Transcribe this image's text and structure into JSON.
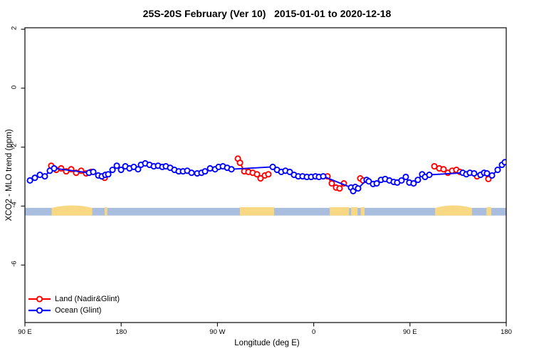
{
  "title": "25S-20S February (Ver 10)   2015-01-01 to 2020-12-18",
  "chart_data": {
    "type": "line",
    "title": "25S-20S February (Ver 10)   2015-01-01 to 2020-12-18",
    "xlabel": "Longitude (deg E)",
    "ylabel": "XCO2 - MLO trend (ppm)",
    "axis_note": "x axis spans 450 deg of longitude starting at 90E and wrapping east through 180, 90W, 0, 90E to 180; stored x values are 90..540",
    "xlim": [
      90,
      540
    ],
    "ylim": [
      -7.95,
      2.05
    ],
    "grid": false,
    "legend_position": "bottom-left",
    "x_ticks": [
      {
        "value": 90,
        "label": "90 E"
      },
      {
        "value": 180,
        "label": "180"
      },
      {
        "value": 270,
        "label": "90 W"
      },
      {
        "value": 360,
        "label": "0"
      },
      {
        "value": 450,
        "label": "90 E"
      },
      {
        "value": 540,
        "label": "180"
      }
    ],
    "y_ticks": [
      {
        "value": 2,
        "label": "2"
      },
      {
        "value": 0,
        "label": "0"
      },
      {
        "value": -2,
        "label": "-2"
      },
      {
        "value": -4,
        "label": "-4"
      },
      {
        "value": -6,
        "label": "-6"
      }
    ],
    "legend": [
      {
        "name": "Land (Nadir&Glint)",
        "color": "#ff0000"
      },
      {
        "name": "Ocean (Glint)",
        "color": "#0000ff"
      }
    ],
    "colors": {
      "land_series": "#ff0000",
      "ocean_series": "#0000ff",
      "map_ocean": "#a9bede",
      "map_land": "#f9d884",
      "axis": "#1a1a1a"
    },
    "map_band": {
      "description": "coastline strip for latitude band 25S-20S drawn across plot near y=-4.2",
      "value_top": -4.06,
      "value_bottom": -4.32,
      "land_segments": [
        {
          "from": 115.0,
          "to": 153.0,
          "hump": true,
          "name": "Australia"
        },
        {
          "from": 164.5,
          "to": 167.0,
          "hump": false,
          "name": "New Caledonia"
        },
        {
          "from": 291.0,
          "to": 323.0,
          "hump": false,
          "name": "South America"
        },
        {
          "from": 375.0,
          "to": 393.0,
          "hump": false,
          "name": "Africa"
        },
        {
          "from": 395.0,
          "to": 401.0,
          "hump": false,
          "name": "Africa east"
        },
        {
          "from": 404.0,
          "to": 407.5,
          "hump": false,
          "name": "Madagascar"
        },
        {
          "from": 473.5,
          "to": 508.0,
          "hump": true,
          "name": "Australia"
        },
        {
          "from": 521.5,
          "to": 526.0,
          "hump": false,
          "name": "New Caledonia"
        }
      ]
    },
    "series": [
      {
        "name": "Land (Nadir&Glint)",
        "color": "#ff0000",
        "marker": "open-circle",
        "segments": [
          [
            [
              114.6,
              -2.63
            ],
            [
              119.3,
              -2.77
            ],
            [
              123.9,
              -2.72
            ],
            [
              128.6,
              -2.82
            ],
            [
              133.3,
              -2.75
            ],
            [
              137.9,
              -2.87
            ],
            [
              142.6,
              -2.8
            ],
            [
              147.2,
              -2.89
            ],
            [
              151.9,
              -2.84
            ]
          ],
          [
            [
              164.6,
              -3.04
            ]
          ],
          [
            [
              289.1,
              -2.39
            ],
            [
              291.1,
              -2.53
            ],
            [
              295.1,
              -2.82
            ],
            [
              299.0,
              -2.84
            ],
            [
              303.0,
              -2.87
            ],
            [
              307.0,
              -2.92
            ],
            [
              310.3,
              -3.06
            ],
            [
              314.3,
              -2.96
            ],
            [
              317.6,
              -2.92
            ]
          ],
          [
            [
              372.9,
              -2.99
            ],
            [
              376.9,
              -3.23
            ],
            [
              380.9,
              -3.37
            ],
            [
              384.2,
              -3.4
            ],
            [
              388.2,
              -3.23
            ]
          ],
          [
            [
              403.5,
              -3.06
            ],
            [
              406.2,
              -3.13
            ]
          ],
          [
            [
              472.8,
              -2.65
            ],
            [
              477.4,
              -2.72
            ],
            [
              481.4,
              -2.75
            ],
            [
              485.4,
              -2.87
            ],
            [
              489.4,
              -2.8
            ],
            [
              493.4,
              -2.77
            ],
            [
              496.7,
              -2.84
            ]
          ],
          [
            [
              512.7,
              -2.99
            ]
          ],
          [
            [
              523.3,
              -3.08
            ]
          ]
        ]
      },
      {
        "name": "Ocean (Glint)",
        "color": "#0000ff",
        "marker": "open-circle",
        "points": [
          [
            94.7,
            -3.13
          ],
          [
            99.3,
            -3.04
          ],
          [
            104.0,
            -2.94
          ],
          [
            108.6,
            -2.99
          ],
          [
            113.3,
            -2.8
          ],
          [
            117.3,
            -2.72
          ],
          [
            149.9,
            -2.87
          ],
          [
            153.9,
            -2.84
          ],
          [
            158.6,
            -2.96
          ],
          [
            161.9,
            -2.99
          ],
          [
            165.2,
            -2.94
          ],
          [
            167.9,
            -2.92
          ],
          [
            171.9,
            -2.77
          ],
          [
            175.9,
            -2.63
          ],
          [
            179.9,
            -2.77
          ],
          [
            183.9,
            -2.65
          ],
          [
            187.8,
            -2.72
          ],
          [
            191.8,
            -2.67
          ],
          [
            195.8,
            -2.75
          ],
          [
            198.5,
            -2.6
          ],
          [
            202.5,
            -2.55
          ],
          [
            206.5,
            -2.6
          ],
          [
            210.5,
            -2.65
          ],
          [
            214.5,
            -2.63
          ],
          [
            218.5,
            -2.67
          ],
          [
            221.8,
            -2.65
          ],
          [
            225.8,
            -2.7
          ],
          [
            229.8,
            -2.77
          ],
          [
            233.8,
            -2.82
          ],
          [
            237.8,
            -2.82
          ],
          [
            241.8,
            -2.8
          ],
          [
            245.8,
            -2.87
          ],
          [
            251.1,
            -2.89
          ],
          [
            255.1,
            -2.87
          ],
          [
            258.4,
            -2.82
          ],
          [
            263.1,
            -2.72
          ],
          [
            267.8,
            -2.75
          ],
          [
            271.1,
            -2.67
          ],
          [
            275.1,
            -2.65
          ],
          [
            279.1,
            -2.7
          ],
          [
            283.1,
            -2.75
          ],
          [
            321.7,
            -2.67
          ],
          [
            325.7,
            -2.77
          ],
          [
            329.7,
            -2.84
          ],
          [
            333.6,
            -2.8
          ],
          [
            337.6,
            -2.84
          ],
          [
            341.6,
            -2.94
          ],
          [
            345.6,
            -2.99
          ],
          [
            349.6,
            -2.99
          ],
          [
            353.6,
            -3.01
          ],
          [
            357.6,
            -3.01
          ],
          [
            361.6,
            -2.99
          ],
          [
            364.9,
            -3.01
          ],
          [
            368.9,
            -2.99
          ],
          [
            394.9,
            -3.37
          ],
          [
            396.9,
            -3.49
          ],
          [
            398.9,
            -3.35
          ],
          [
            401.5,
            -3.4
          ],
          [
            409.5,
            -3.11
          ],
          [
            411.5,
            -3.16
          ],
          [
            415.5,
            -3.25
          ],
          [
            418.9,
            -3.23
          ],
          [
            422.9,
            -3.11
          ],
          [
            426.8,
            -3.08
          ],
          [
            430.8,
            -3.13
          ],
          [
            434.8,
            -3.18
          ],
          [
            438.1,
            -3.2
          ],
          [
            442.1,
            -3.13
          ],
          [
            446.1,
            -3.01
          ],
          [
            449.4,
            -3.2
          ],
          [
            453.4,
            -3.23
          ],
          [
            457.4,
            -3.11
          ],
          [
            461.4,
            -2.92
          ],
          [
            464.1,
            -3.01
          ],
          [
            468.1,
            -2.94
          ],
          [
            499.4,
            -2.87
          ],
          [
            502.7,
            -2.92
          ],
          [
            506.0,
            -2.87
          ],
          [
            510.0,
            -2.89
          ],
          [
            516.0,
            -2.94
          ],
          [
            519.3,
            -2.87
          ],
          [
            522.0,
            -2.89
          ],
          [
            526.7,
            -2.96
          ],
          [
            532.0,
            -2.77
          ],
          [
            536.0,
            -2.6
          ],
          [
            538.7,
            -2.51
          ]
        ]
      }
    ]
  }
}
